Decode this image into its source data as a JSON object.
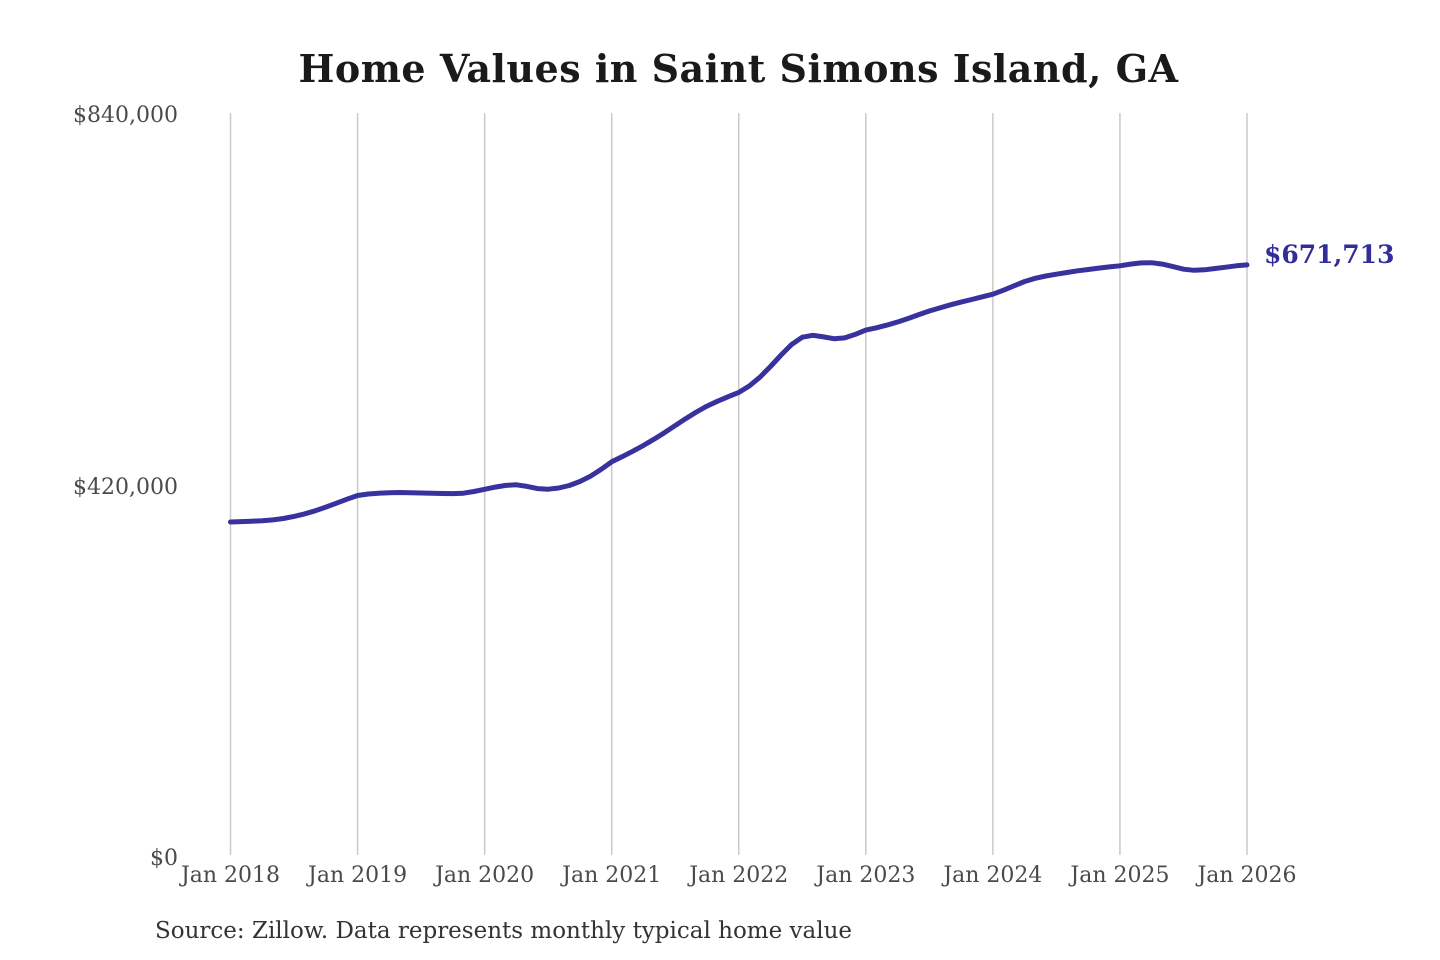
{
  "title": "Home Values in Saint Simons Island, GA",
  "source_note": "Source: Zillow. Data represents monthly typical home value",
  "end_label": "$671,713",
  "colors": {
    "line": "#38329e",
    "end_label": "#332d9b",
    "title": "#1a1a1a",
    "axis_text": "#4a4a4a",
    "grid": "#c9c9c9",
    "source_text": "#333333"
  },
  "chart_data": {
    "type": "line",
    "title": "Home Values in Saint Simons Island, GA",
    "xlabel": "",
    "ylabel": "",
    "ylim": [
      0,
      840000
    ],
    "y_ticks": [
      {
        "value": 0,
        "label": "$0"
      },
      {
        "value": 420000,
        "label": "$420,000"
      },
      {
        "value": 840000,
        "label": "$840,000"
      }
    ],
    "x_tick_labels": [
      "Jan 2018",
      "Jan 2019",
      "Jan 2020",
      "Jan 2021",
      "Jan 2022",
      "Jan 2023",
      "Jan 2024",
      "Jan 2025",
      "Jan 2026"
    ],
    "grid": "vertical-only",
    "legend": "none",
    "series": [
      {
        "name": "Monthly typical home value",
        "start_month": "2018-01",
        "end_month": "2026-01",
        "interval": "monthly",
        "final_value": 671713,
        "final_label": "$671,713",
        "values": [
          381000,
          381400,
          381900,
          382500,
          383400,
          385000,
          387300,
          390200,
          393700,
          397800,
          402200,
          406800,
          411000,
          412600,
          413600,
          414100,
          414300,
          414100,
          413800,
          413500,
          413200,
          413100,
          413600,
          415500,
          418000,
          420400,
          422400,
          423100,
          421300,
          418800,
          418100,
          419400,
          422300,
          426800,
          432800,
          440500,
          449000,
          454900,
          461000,
          467600,
          474600,
          482100,
          490000,
          497900,
          505400,
          512000,
          517600,
          522700,
          527500,
          534800,
          544700,
          556800,
          569800,
          581800,
          589900,
          592100,
          590300,
          588200,
          589100,
          593100,
          598000,
          600600,
          603600,
          607100,
          611100,
          615500,
          619500,
          623100,
          626500,
          629600,
          632600,
          635600,
          638500,
          643100,
          648000,
          652900,
          656500,
          659100,
          661100,
          663100,
          665000,
          666500,
          668000,
          669400,
          670600,
          672600,
          673900,
          674100,
          672600,
          669700,
          666800,
          665600,
          666100,
          667600,
          669100,
          670600,
          671713
        ]
      }
    ]
  }
}
